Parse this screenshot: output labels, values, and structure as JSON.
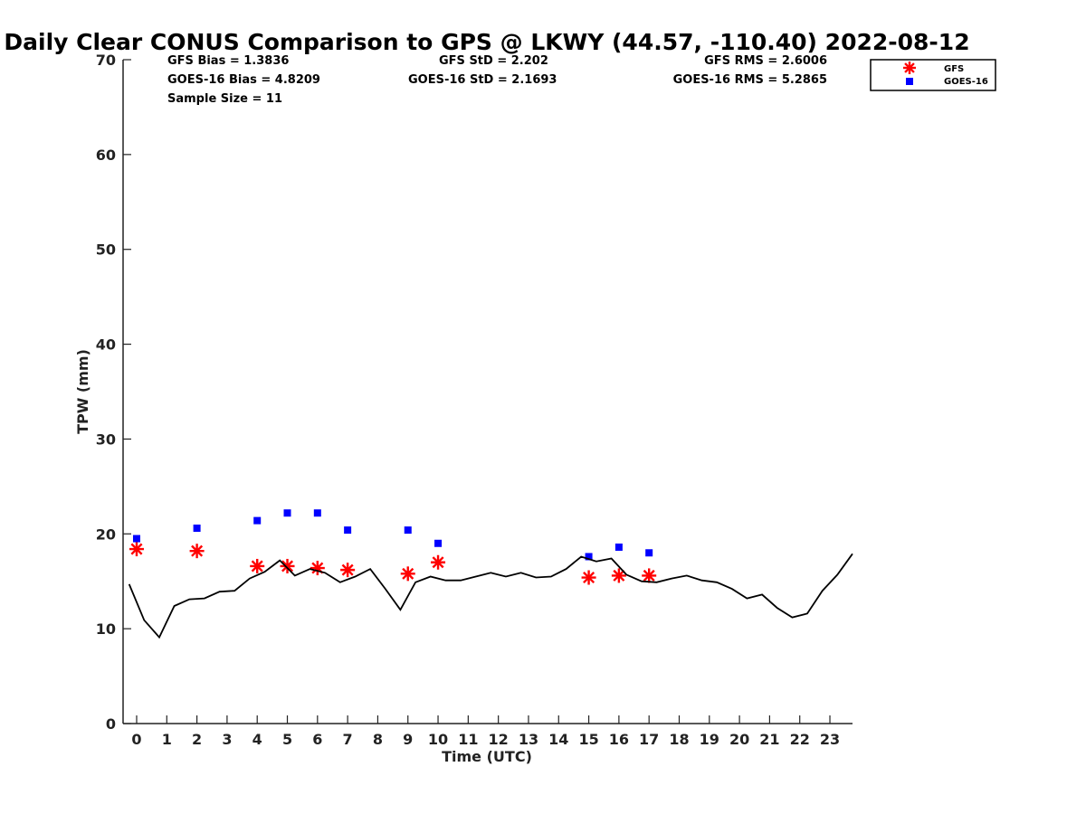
{
  "chart_data": {
    "type": "scatter",
    "title": "Daily Clear CONUS Comparison to GPS @ LKWY (44.57, -110.40) 2022-08-12",
    "xlabel": "Time (UTC)",
    "ylabel": "TPW (mm)",
    "xlim": [
      -0.45,
      23.75
    ],
    "ylim": [
      0,
      70
    ],
    "x_ticks": [
      "0",
      "1",
      "2",
      "3",
      "4",
      "5",
      "6",
      "7",
      "8",
      "9",
      "10",
      "11",
      "12",
      "13",
      "14",
      "15",
      "16",
      "17",
      "18",
      "19",
      "20",
      "21",
      "22",
      "23"
    ],
    "y_ticks": [
      "0",
      "10",
      "20",
      "30",
      "40",
      "50",
      "60",
      "70"
    ],
    "stats": {
      "gfs_bias": "GFS Bias = 1.3836",
      "goes_bias": "GOES-16 Bias = 4.8209",
      "sample_size": "Sample Size = 11",
      "gfs_std": "GFS StD = 2.202",
      "goes_std": "GOES-16 StD = 2.1693",
      "gfs_rms": "GFS RMS = 2.6006",
      "goes_rms": "GOES-16 RMS = 5.2865"
    },
    "legend": {
      "position": "top-right",
      "entries": [
        "GFS",
        "GOES-16"
      ]
    },
    "series": [
      {
        "name": "GFS",
        "marker": "asterisk",
        "color": "#ff0000",
        "x": [
          0,
          2,
          4,
          5,
          6,
          7,
          9,
          10,
          15,
          16,
          17
        ],
        "y": [
          18.4,
          18.2,
          16.6,
          16.6,
          16.4,
          16.2,
          15.8,
          17.0,
          15.4,
          15.6,
          15.6
        ]
      },
      {
        "name": "GOES-16",
        "marker": "square",
        "color": "#0000ff",
        "x": [
          0,
          2,
          4,
          5,
          6,
          7,
          9,
          10,
          15,
          16,
          17
        ],
        "y": [
          19.5,
          20.6,
          21.4,
          22.2,
          22.2,
          20.4,
          20.4,
          19.0,
          17.6,
          18.6,
          18.0
        ]
      },
      {
        "marker": "line",
        "color": "#000000",
        "x": [
          -0.25,
          0.25,
          0.75,
          1.25,
          1.75,
          2.25,
          2.75,
          3.25,
          3.75,
          4.25,
          4.75,
          5.25,
          5.75,
          6.25,
          6.75,
          7.25,
          7.75,
          8.25,
          8.75,
          9.25,
          9.75,
          10.25,
          10.75,
          11.25,
          11.75,
          12.25,
          12.75,
          13.25,
          13.75,
          14.25,
          14.75,
          15.25,
          15.75,
          16.25,
          16.75,
          17.25,
          17.75,
          18.25,
          18.75,
          19.25,
          19.75,
          20.25,
          20.75,
          21.25,
          21.75,
          22.25,
          22.75,
          23.25,
          23.75
        ],
        "y": [
          14.7,
          10.9,
          9.1,
          12.4,
          13.1,
          13.2,
          13.9,
          14.0,
          15.3,
          16.0,
          17.2,
          15.6,
          16.3,
          15.9,
          14.9,
          15.5,
          16.3,
          14.2,
          12.0,
          14.9,
          15.5,
          15.1,
          15.1,
          15.5,
          15.9,
          15.5,
          15.9,
          15.4,
          15.5,
          16.3,
          17.6,
          17.1,
          17.4,
          15.7,
          15.0,
          14.9,
          15.3,
          15.6,
          15.1,
          14.9,
          14.2,
          13.2,
          13.6,
          12.2,
          11.2,
          11.6,
          14.0,
          15.7,
          17.9
        ]
      }
    ]
  }
}
